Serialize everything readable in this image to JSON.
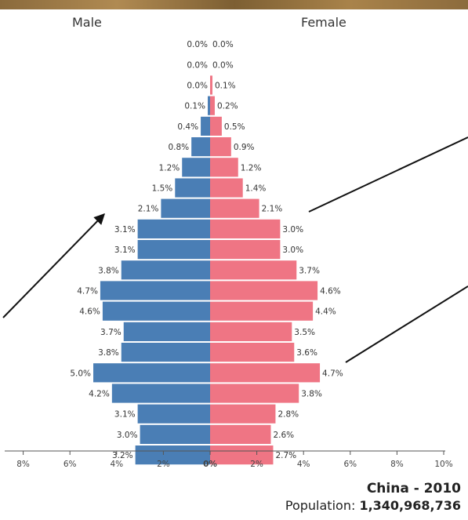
{
  "chart_data": {
    "type": "bar",
    "orientation": "horizontal-population-pyramid",
    "male_label": "Male",
    "female_label": "Female",
    "series": [
      {
        "name": "Male",
        "color": "#4a7eb5",
        "values": [
          0.0,
          0.0,
          0.0,
          0.1,
          0.4,
          0.8,
          1.2,
          1.5,
          2.1,
          3.1,
          3.1,
          3.8,
          4.7,
          4.6,
          3.7,
          3.8,
          5.0,
          4.2,
          3.1,
          3.0,
          3.2
        ],
        "labels": [
          "0.0%",
          "0.0%",
          "0.0%",
          "0.1%",
          "0.4%",
          "0.8%",
          "1.2%",
          "1.5%",
          "2.1%",
          "3.1%",
          "3.1%",
          "3.8%",
          "4.7%",
          "4.6%",
          "3.7%",
          "3.8%",
          "5.0%",
          "4.2%",
          "3.1%",
          "3.0%",
          "3.2%"
        ]
      },
      {
        "name": "Female",
        "color": "#ef7584",
        "values": [
          0.0,
          0.0,
          0.1,
          0.2,
          0.5,
          0.9,
          1.2,
          1.4,
          2.1,
          3.0,
          3.0,
          3.7,
          4.6,
          4.4,
          3.5,
          3.6,
          4.7,
          3.8,
          2.8,
          2.6,
          2.7
        ],
        "labels": [
          "0.0%",
          "0.0%",
          "0.1%",
          "0.2%",
          "0.5%",
          "0.9%",
          "1.2%",
          "1.4%",
          "2.1%",
          "3.0%",
          "3.0%",
          "3.7%",
          "4.6%",
          "4.4%",
          "3.5%",
          "3.6%",
          "4.7%",
          "3.8%",
          "2.8%",
          "2.6%",
          "2.7%"
        ]
      }
    ],
    "x_ticks": [
      {
        "value": -8,
        "label": "8%"
      },
      {
        "value": -6,
        "label": "6%"
      },
      {
        "value": -4,
        "label": "4%"
      },
      {
        "value": -2,
        "label": "2%"
      },
      {
        "value": 0,
        "label": "0%"
      },
      {
        "value": 2,
        "label": "2%"
      },
      {
        "value": 4,
        "label": "4%"
      },
      {
        "value": 6,
        "label": "6%"
      },
      {
        "value": 8,
        "label": "8%"
      },
      {
        "value": 10,
        "label": "10%"
      }
    ],
    "xlim": [
      -8.8,
      10
    ],
    "grid": false,
    "caption_title": "China - 2010",
    "population_label": "Population: ",
    "population_value": "1,340,968,736",
    "annotation_arrows": 3
  }
}
